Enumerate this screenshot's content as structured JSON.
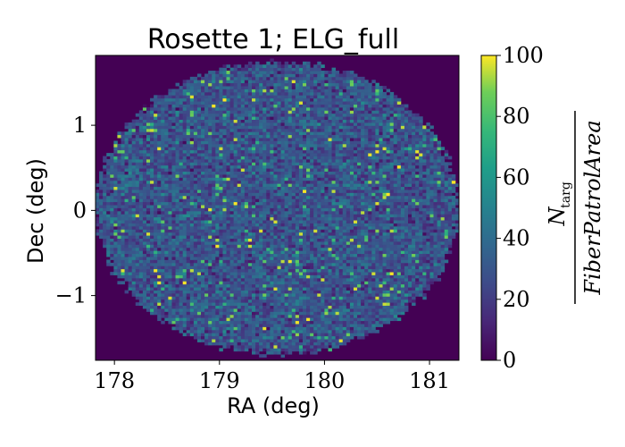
{
  "chart_data": {
    "type": "heatmap",
    "title": "Rosette 1; ELG_full",
    "xlabel": "RA (deg)",
    "ylabel": "Dec (deg)",
    "xlim": [
      177.82,
      181.28
    ],
    "ylim": [
      -1.76,
      1.82
    ],
    "xticks": [
      178,
      179,
      180,
      181
    ],
    "xtick_labels": [
      "178",
      "179",
      "180",
      "181"
    ],
    "yticks": [
      -1,
      0,
      1
    ],
    "ytick_labels": [
      "−1",
      "0",
      "1"
    ],
    "colorbar": {
      "colormap": "viridis",
      "vmin": 0,
      "vmax": 100,
      "ticks": [
        0,
        20,
        40,
        60,
        80,
        100
      ],
      "tick_labels": [
        "0",
        "20",
        "40",
        "60",
        "80",
        "100"
      ],
      "label_numerator": "N",
      "label_numerator_sub": "targ",
      "label_denominator": "FiberPatrolArea"
    },
    "footprint": {
      "shape": "circle",
      "center_ra": 179.55,
      "center_dec": 0.03,
      "radius_deg": 1.72
    },
    "typical_density_inside": 30,
    "density_outside": 0,
    "grid": false
  }
}
